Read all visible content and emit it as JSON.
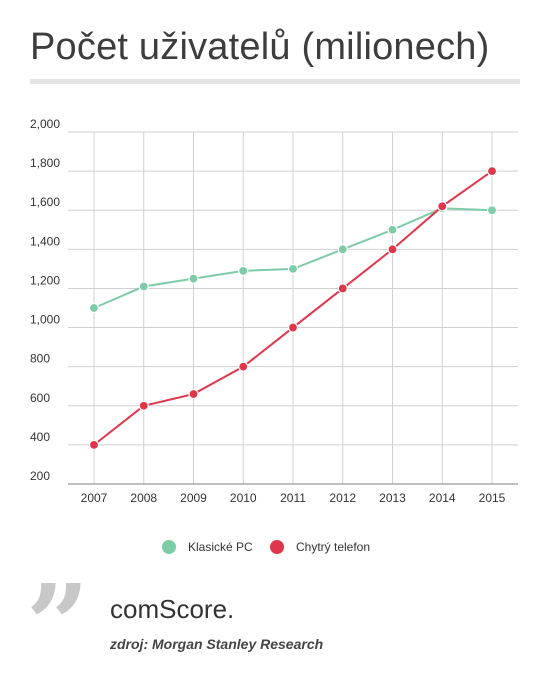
{
  "title": "Počet uživatelů (milionech)",
  "legend": {
    "series1": "Klasické PC",
    "series2": "Chytrý telefon"
  },
  "source": {
    "name": "comScore.",
    "detail": "zdroj: Morgan Stanley Research"
  },
  "colors": {
    "pc": "#7ecba8",
    "phone": "#e0364b",
    "grid": "#d0d0d0",
    "axis": "#9a9a9a"
  },
  "chart_data": {
    "type": "line",
    "title": "Počet uživatelů (milionech)",
    "xlabel": "",
    "ylabel": "",
    "x": [
      "2007",
      "2008",
      "2009",
      "2010",
      "2011",
      "2012",
      "2013",
      "2014",
      "2015"
    ],
    "ylim": [
      200,
      2000
    ],
    "yticks": [
      "200",
      "400",
      "600",
      "800",
      "1,000",
      "1,200",
      "1,400",
      "1,600",
      "1,800",
      "2,000"
    ],
    "ytick_values": [
      200,
      400,
      600,
      800,
      1000,
      1200,
      1400,
      1600,
      1800,
      2000
    ],
    "grid": true,
    "legend_position": "bottom-center",
    "series": [
      {
        "name": "Klasické PC",
        "color": "#7ecba8",
        "values": [
          1100,
          1210,
          1250,
          1290,
          1300,
          1400,
          1500,
          1610,
          1600
        ]
      },
      {
        "name": "Chytrý telefon",
        "color": "#e0364b",
        "values": [
          400,
          600,
          660,
          800,
          1000,
          1200,
          1400,
          1620,
          1800
        ]
      }
    ]
  }
}
